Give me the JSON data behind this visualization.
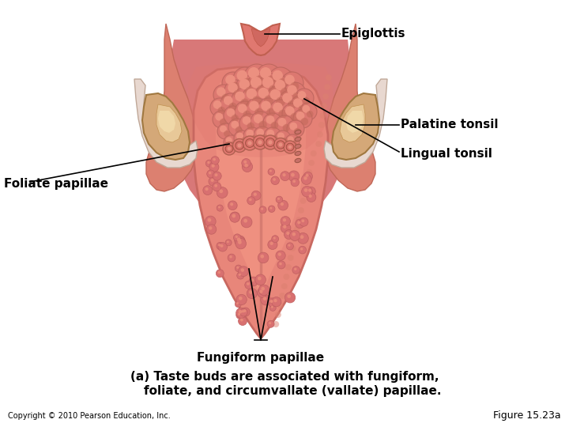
{
  "background_color": "#ffffff",
  "figure_width": 7.2,
  "figure_height": 5.4,
  "dpi": 100,
  "tongue_color": "#E8867A",
  "tongue_edge": "#C86860",
  "tongue_light": "#F0A090",
  "tongue_mid": "#DC7868",
  "posterior_bg": "#D4706A",
  "lingual_bump": "#D4706A",
  "lingual_bump_edge": "#C06058",
  "circumvallate_color": "#D47068",
  "circumvallate_inner": "#E89080",
  "fungiform_color": "#D07068",
  "fungiform_edge": "#B85855",
  "foliate_color": "#C06858",
  "epiglottis_color": "#E08878",
  "epiglottis_dark": "#D07060",
  "throat_color": "#D87878",
  "throat_shadow": "#C46858",
  "tonsil_color": "#D4A878",
  "tonsil_cream": "#E8C898",
  "tonsil_edge": "#B88858",
  "side_tissue": "#E09080",
  "white_tissue": "#F0E8E0",
  "sulcus_color": "#C86858",
  "caption_line1": "(a) Taste buds are associated with fungiform,",
  "caption_line2": "    foliate, and circumvallate (vallate) papillae.",
  "caption_fontsize": 11,
  "caption_fontweight": "bold",
  "copyright_text": "Copyright © 2010 Pearson Education, Inc.",
  "copyright_fontsize": 7,
  "figure_label": "Figure 15.23a",
  "figure_label_fontsize": 9,
  "label_fontsize": 11,
  "label_fontweight": "bold",
  "epiglottis_label": "Epiglottis",
  "palatine_label": "Palatine tonsil",
  "lingual_label": "Lingual tonsil",
  "foliate_label": "Foliate papillae",
  "fungiform_label": "Fungiform papillae"
}
